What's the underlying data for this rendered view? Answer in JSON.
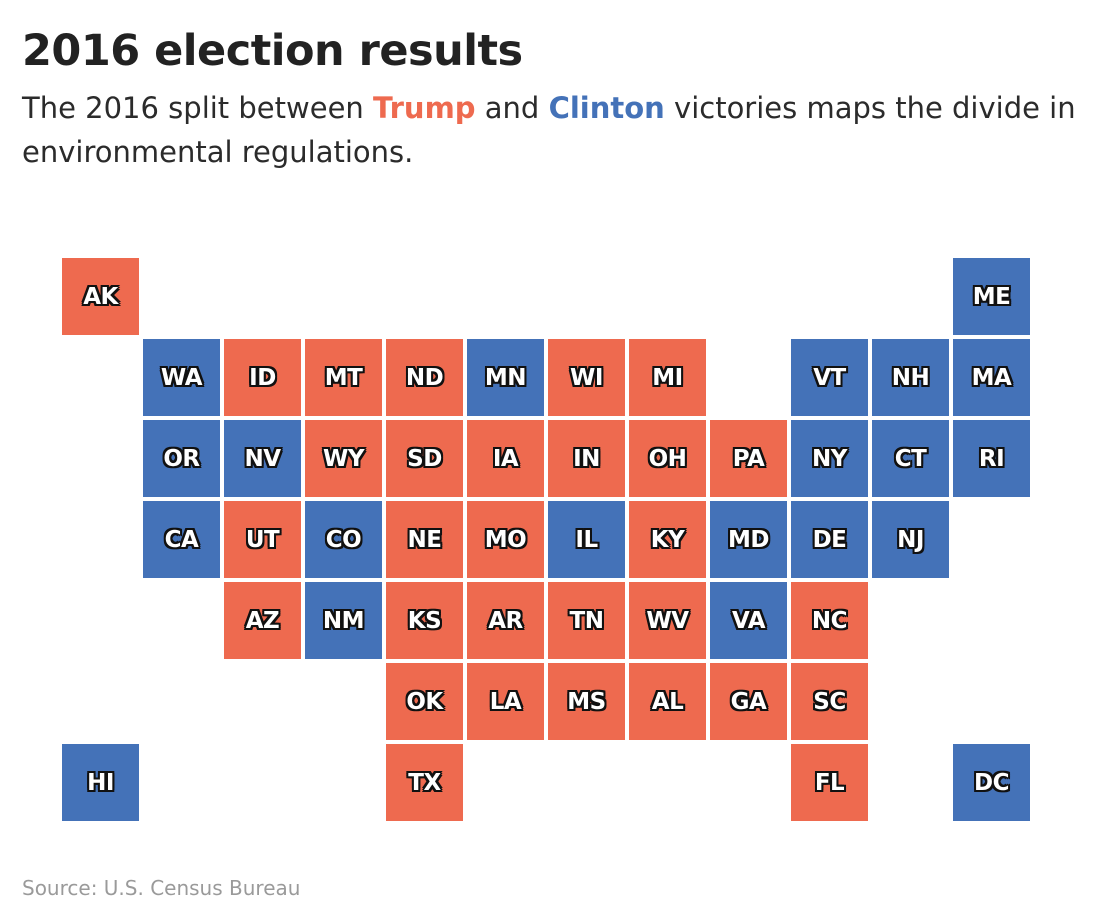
{
  "title": "2016 election results",
  "subtitle": {
    "part1": "The 2016 split between ",
    "trump": "Trump",
    "part2": " and ",
    "clinton": "Clinton",
    "part3": " victories maps the divide in environmental regulations."
  },
  "colors": {
    "trump": "#ee6a4f",
    "clinton": "#4472b8"
  },
  "states": [
    {
      "abbr": "AK",
      "winner": "trump",
      "row": 0,
      "col": 0
    },
    {
      "abbr": "ME",
      "winner": "clinton",
      "row": 0,
      "col": 11
    },
    {
      "abbr": "WA",
      "winner": "clinton",
      "row": 1,
      "col": 1
    },
    {
      "abbr": "ID",
      "winner": "trump",
      "row": 1,
      "col": 2
    },
    {
      "abbr": "MT",
      "winner": "trump",
      "row": 1,
      "col": 3
    },
    {
      "abbr": "ND",
      "winner": "trump",
      "row": 1,
      "col": 4
    },
    {
      "abbr": "MN",
      "winner": "clinton",
      "row": 1,
      "col": 5
    },
    {
      "abbr": "WI",
      "winner": "trump",
      "row": 1,
      "col": 6
    },
    {
      "abbr": "MI",
      "winner": "trump",
      "row": 1,
      "col": 7
    },
    {
      "abbr": "VT",
      "winner": "clinton",
      "row": 1,
      "col": 9
    },
    {
      "abbr": "NH",
      "winner": "clinton",
      "row": 1,
      "col": 10
    },
    {
      "abbr": "MA",
      "winner": "clinton",
      "row": 1,
      "col": 11
    },
    {
      "abbr": "OR",
      "winner": "clinton",
      "row": 2,
      "col": 1
    },
    {
      "abbr": "NV",
      "winner": "clinton",
      "row": 2,
      "col": 2
    },
    {
      "abbr": "WY",
      "winner": "trump",
      "row": 2,
      "col": 3
    },
    {
      "abbr": "SD",
      "winner": "trump",
      "row": 2,
      "col": 4
    },
    {
      "abbr": "IA",
      "winner": "trump",
      "row": 2,
      "col": 5
    },
    {
      "abbr": "IN",
      "winner": "trump",
      "row": 2,
      "col": 6
    },
    {
      "abbr": "OH",
      "winner": "trump",
      "row": 2,
      "col": 7
    },
    {
      "abbr": "PA",
      "winner": "trump",
      "row": 2,
      "col": 8
    },
    {
      "abbr": "NY",
      "winner": "clinton",
      "row": 2,
      "col": 9
    },
    {
      "abbr": "CT",
      "winner": "clinton",
      "row": 2,
      "col": 10
    },
    {
      "abbr": "RI",
      "winner": "clinton",
      "row": 2,
      "col": 11
    },
    {
      "abbr": "CA",
      "winner": "clinton",
      "row": 3,
      "col": 1
    },
    {
      "abbr": "UT",
      "winner": "trump",
      "row": 3,
      "col": 2
    },
    {
      "abbr": "CO",
      "winner": "clinton",
      "row": 3,
      "col": 3
    },
    {
      "abbr": "NE",
      "winner": "trump",
      "row": 3,
      "col": 4
    },
    {
      "abbr": "MO",
      "winner": "trump",
      "row": 3,
      "col": 5
    },
    {
      "abbr": "IL",
      "winner": "clinton",
      "row": 3,
      "col": 6
    },
    {
      "abbr": "KY",
      "winner": "trump",
      "row": 3,
      "col": 7
    },
    {
      "abbr": "MD",
      "winner": "clinton",
      "row": 3,
      "col": 8
    },
    {
      "abbr": "DE",
      "winner": "clinton",
      "row": 3,
      "col": 9
    },
    {
      "abbr": "NJ",
      "winner": "clinton",
      "row": 3,
      "col": 10
    },
    {
      "abbr": "AZ",
      "winner": "trump",
      "row": 4,
      "col": 2
    },
    {
      "abbr": "NM",
      "winner": "clinton",
      "row": 4,
      "col": 3
    },
    {
      "abbr": "KS",
      "winner": "trump",
      "row": 4,
      "col": 4
    },
    {
      "abbr": "AR",
      "winner": "trump",
      "row": 4,
      "col": 5
    },
    {
      "abbr": "TN",
      "winner": "trump",
      "row": 4,
      "col": 6
    },
    {
      "abbr": "WV",
      "winner": "trump",
      "row": 4,
      "col": 7
    },
    {
      "abbr": "VA",
      "winner": "clinton",
      "row": 4,
      "col": 8
    },
    {
      "abbr": "NC",
      "winner": "trump",
      "row": 4,
      "col": 9
    },
    {
      "abbr": "OK",
      "winner": "trump",
      "row": 5,
      "col": 4
    },
    {
      "abbr": "LA",
      "winner": "trump",
      "row": 5,
      "col": 5
    },
    {
      "abbr": "MS",
      "winner": "trump",
      "row": 5,
      "col": 6
    },
    {
      "abbr": "AL",
      "winner": "trump",
      "row": 5,
      "col": 7
    },
    {
      "abbr": "GA",
      "winner": "trump",
      "row": 5,
      "col": 8
    },
    {
      "abbr": "SC",
      "winner": "trump",
      "row": 5,
      "col": 9
    },
    {
      "abbr": "HI",
      "winner": "clinton",
      "row": 6,
      "col": 0
    },
    {
      "abbr": "TX",
      "winner": "trump",
      "row": 6,
      "col": 4
    },
    {
      "abbr": "FL",
      "winner": "trump",
      "row": 6,
      "col": 9
    },
    {
      "abbr": "DC",
      "winner": "clinton",
      "row": 6,
      "col": 11
    }
  ],
  "source": "Source: U.S. Census Bureau"
}
